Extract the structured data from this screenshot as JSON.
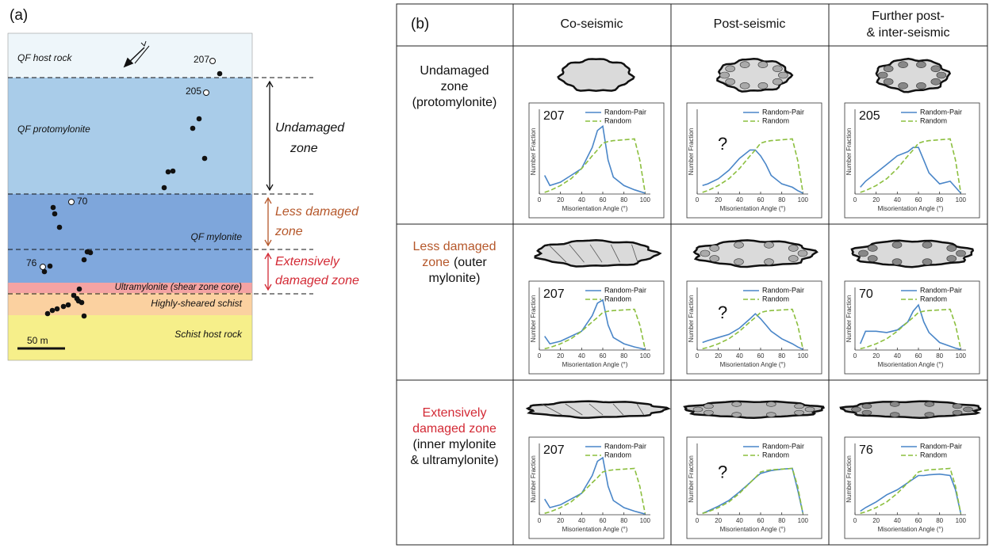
{
  "panel_a": {
    "label": "(a)",
    "units": [
      "QF host rock",
      "QF protomylonite",
      "QF mylonite",
      "Ultramylonite (shear zone core)",
      "Highly-sheared schist",
      "Schist host rock"
    ],
    "samples": [
      "207",
      "205",
      "70",
      "76"
    ],
    "zones": [
      [
        "Undamaged",
        "zone"
      ],
      [
        "Less damaged",
        "zone"
      ],
      [
        "Extensively",
        "damaged zone"
      ]
    ],
    "scale_bar": "50 m"
  },
  "panel_b": {
    "label": "(b)",
    "columns": [
      [
        "Co-seismic"
      ],
      [
        "Post-seismic"
      ],
      [
        "Further post-",
        "& inter-seismic"
      ]
    ],
    "rows": [
      {
        "lines": [
          "Undamaged",
          "zone",
          "(protomylonite)"
        ]
      },
      {
        "lines": [
          "Less damaged",
          "zone",
          "(outer",
          "mylonite)"
        ]
      },
      {
        "lines": [
          "Extensively",
          "damaged zone",
          "(inner mylonite",
          "& ultramylonite)"
        ]
      }
    ]
  },
  "chart_data": [
    {
      "type": "line",
      "sample": "207",
      "x_label": "Misorientation Angle (°)",
      "y_label": "Number Fraction",
      "xlim": [
        0,
        105
      ],
      "ylim": [
        0,
        1
      ],
      "xticks": [
        0,
        20,
        40,
        60,
        80,
        100
      ],
      "x": [
        5,
        10,
        20,
        30,
        40,
        50,
        55,
        60,
        65,
        70,
        80,
        90,
        95,
        100
      ],
      "series": [
        {
          "name": "Random-Pair",
          "color": "#4a86c8",
          "values": [
            0.22,
            0.1,
            0.14,
            0.22,
            0.3,
            0.55,
            0.75,
            0.8,
            0.4,
            0.2,
            0.1,
            0.05,
            0.03,
            0.01
          ]
        },
        {
          "name": "Random",
          "color": "#8cbf3f",
          "values": [
            0.02,
            0.04,
            0.1,
            0.18,
            0.3,
            0.45,
            0.52,
            0.6,
            0.62,
            0.63,
            0.64,
            0.65,
            0.4,
            0.02
          ]
        }
      ]
    },
    {
      "type": "line",
      "sample": "?",
      "x_label": "Misorientation Angle (°)",
      "y_label": "Number Fraction",
      "xlim": [
        0,
        105
      ],
      "ylim": [
        0,
        1
      ],
      "xticks": [
        0,
        20,
        40,
        60,
        80,
        100
      ],
      "x": [
        5,
        10,
        20,
        30,
        40,
        50,
        55,
        60,
        65,
        70,
        80,
        90,
        95,
        100
      ],
      "series": [
        {
          "name": "Random-Pair",
          "color": "#4a86c8",
          "values": [
            0.1,
            0.12,
            0.18,
            0.28,
            0.42,
            0.52,
            0.52,
            0.45,
            0.35,
            0.22,
            0.12,
            0.08,
            0.04,
            0.01
          ]
        },
        {
          "name": "Random",
          "color": "#8cbf3f",
          "values": [
            0.02,
            0.04,
            0.1,
            0.18,
            0.3,
            0.45,
            0.52,
            0.6,
            0.62,
            0.63,
            0.64,
            0.65,
            0.4,
            0.02
          ]
        }
      ]
    },
    {
      "type": "line",
      "sample": "205",
      "x_label": "Misorientation Angle (°)",
      "y_label": "Number Fraction",
      "xlim": [
        0,
        105
      ],
      "ylim": [
        0,
        1
      ],
      "xticks": [
        0,
        20,
        40,
        60,
        80,
        100
      ],
      "x": [
        5,
        10,
        20,
        30,
        40,
        50,
        55,
        60,
        65,
        70,
        80,
        90,
        95,
        100
      ],
      "series": [
        {
          "name": "Random-Pair",
          "color": "#4a86c8",
          "values": [
            0.08,
            0.15,
            0.25,
            0.35,
            0.45,
            0.5,
            0.55,
            0.55,
            0.4,
            0.25,
            0.12,
            0.15,
            0.08,
            0.01
          ]
        },
        {
          "name": "Random",
          "color": "#8cbf3f",
          "values": [
            0.02,
            0.04,
            0.1,
            0.18,
            0.3,
            0.45,
            0.52,
            0.6,
            0.62,
            0.63,
            0.64,
            0.65,
            0.4,
            0.02
          ]
        }
      ]
    },
    {
      "type": "line",
      "sample": "207",
      "x_label": "Misorientation Angle (°)",
      "y_label": "Number Fraction",
      "xlim": [
        0,
        105
      ],
      "ylim": [
        0,
        1
      ],
      "xticks": [
        0,
        20,
        40,
        60,
        80,
        100
      ],
      "x": [
        5,
        10,
        20,
        30,
        40,
        50,
        55,
        60,
        65,
        70,
        80,
        90,
        95,
        100
      ],
      "series": [
        {
          "name": "Random-Pair",
          "color": "#4a86c8",
          "values": [
            0.22,
            0.1,
            0.14,
            0.22,
            0.3,
            0.55,
            0.75,
            0.8,
            0.4,
            0.2,
            0.1,
            0.05,
            0.03,
            0.01
          ]
        },
        {
          "name": "Random",
          "color": "#8cbf3f",
          "values": [
            0.02,
            0.04,
            0.1,
            0.18,
            0.3,
            0.45,
            0.52,
            0.6,
            0.62,
            0.63,
            0.64,
            0.65,
            0.4,
            0.02
          ]
        }
      ]
    },
    {
      "type": "line",
      "sample": "?",
      "x_label": "Misorientation Angle (°)",
      "y_label": "Number Fraction",
      "xlim": [
        0,
        105
      ],
      "ylim": [
        0,
        1
      ],
      "xticks": [
        0,
        20,
        40,
        60,
        80,
        100
      ],
      "x": [
        5,
        10,
        20,
        30,
        40,
        50,
        55,
        60,
        65,
        70,
        80,
        90,
        95,
        100
      ],
      "series": [
        {
          "name": "Random-Pair",
          "color": "#4a86c8",
          "values": [
            0.12,
            0.15,
            0.2,
            0.25,
            0.35,
            0.5,
            0.58,
            0.5,
            0.4,
            0.3,
            0.18,
            0.1,
            0.05,
            0.01
          ]
        },
        {
          "name": "Random",
          "color": "#8cbf3f",
          "values": [
            0.02,
            0.04,
            0.1,
            0.18,
            0.3,
            0.45,
            0.52,
            0.6,
            0.62,
            0.63,
            0.64,
            0.65,
            0.4,
            0.02
          ]
        }
      ]
    },
    {
      "type": "line",
      "sample": "70",
      "x_label": "Misorientation Angle (°)",
      "y_label": "Number Fraction",
      "xlim": [
        0,
        105
      ],
      "ylim": [
        0,
        1
      ],
      "xticks": [
        0,
        20,
        40,
        60,
        80,
        100
      ],
      "x": [
        5,
        10,
        20,
        30,
        40,
        50,
        55,
        60,
        65,
        70,
        80,
        90,
        95,
        100
      ],
      "series": [
        {
          "name": "Random-Pair",
          "color": "#4a86c8",
          "values": [
            0.1,
            0.3,
            0.3,
            0.28,
            0.32,
            0.45,
            0.62,
            0.72,
            0.45,
            0.28,
            0.12,
            0.06,
            0.03,
            0.01
          ]
        },
        {
          "name": "Random",
          "color": "#8cbf3f",
          "values": [
            0.02,
            0.04,
            0.1,
            0.18,
            0.3,
            0.45,
            0.52,
            0.6,
            0.62,
            0.63,
            0.64,
            0.65,
            0.4,
            0.02
          ]
        }
      ]
    },
    {
      "type": "line",
      "sample": "207",
      "x_label": "Misorientation Angle (°)",
      "y_label": "Number Fraction",
      "xlim": [
        0,
        105
      ],
      "ylim": [
        0,
        1
      ],
      "xticks": [
        0,
        20,
        40,
        60,
        80,
        100
      ],
      "x": [
        5,
        10,
        20,
        30,
        40,
        50,
        55,
        60,
        65,
        70,
        80,
        90,
        95,
        100
      ],
      "series": [
        {
          "name": "Random-Pair",
          "color": "#4a86c8",
          "values": [
            0.22,
            0.1,
            0.14,
            0.22,
            0.3,
            0.55,
            0.75,
            0.8,
            0.4,
            0.2,
            0.1,
            0.05,
            0.03,
            0.01
          ]
        },
        {
          "name": "Random",
          "color": "#8cbf3f",
          "values": [
            0.02,
            0.04,
            0.1,
            0.18,
            0.3,
            0.45,
            0.52,
            0.6,
            0.62,
            0.63,
            0.64,
            0.65,
            0.4,
            0.02
          ]
        }
      ]
    },
    {
      "type": "line",
      "sample": "?",
      "x_label": "Misorientation Angle (°)",
      "y_label": "Number Fraction",
      "xlim": [
        0,
        105
      ],
      "ylim": [
        0,
        1
      ],
      "xticks": [
        0,
        20,
        40,
        60,
        80,
        100
      ],
      "x": [
        5,
        10,
        20,
        30,
        40,
        50,
        55,
        60,
        65,
        70,
        80,
        90,
        95,
        100
      ],
      "series": [
        {
          "name": "Random-Pair",
          "color": "#4a86c8",
          "values": [
            0.02,
            0.05,
            0.12,
            0.2,
            0.32,
            0.45,
            0.52,
            0.58,
            0.6,
            0.62,
            0.64,
            0.65,
            0.35,
            0.02
          ]
        },
        {
          "name": "Random",
          "color": "#8cbf3f",
          "values": [
            0.02,
            0.04,
            0.1,
            0.18,
            0.3,
            0.45,
            0.52,
            0.6,
            0.62,
            0.63,
            0.64,
            0.65,
            0.4,
            0.02
          ]
        }
      ]
    },
    {
      "type": "line",
      "sample": "76",
      "x_label": "Misorientation Angle (°)",
      "y_label": "Number Fraction",
      "xlim": [
        0,
        105
      ],
      "ylim": [
        0,
        1
      ],
      "xticks": [
        0,
        20,
        40,
        60,
        80,
        100
      ],
      "x": [
        5,
        10,
        20,
        30,
        40,
        50,
        55,
        60,
        65,
        70,
        80,
        90,
        95,
        100
      ],
      "series": [
        {
          "name": "Random-Pair",
          "color": "#4a86c8",
          "values": [
            0.05,
            0.1,
            0.18,
            0.28,
            0.35,
            0.45,
            0.5,
            0.55,
            0.55,
            0.56,
            0.57,
            0.55,
            0.35,
            0.02
          ]
        },
        {
          "name": "Random",
          "color": "#8cbf3f",
          "values": [
            0.02,
            0.04,
            0.1,
            0.18,
            0.3,
            0.45,
            0.52,
            0.6,
            0.62,
            0.63,
            0.64,
            0.65,
            0.4,
            0.02
          ]
        }
      ]
    }
  ]
}
